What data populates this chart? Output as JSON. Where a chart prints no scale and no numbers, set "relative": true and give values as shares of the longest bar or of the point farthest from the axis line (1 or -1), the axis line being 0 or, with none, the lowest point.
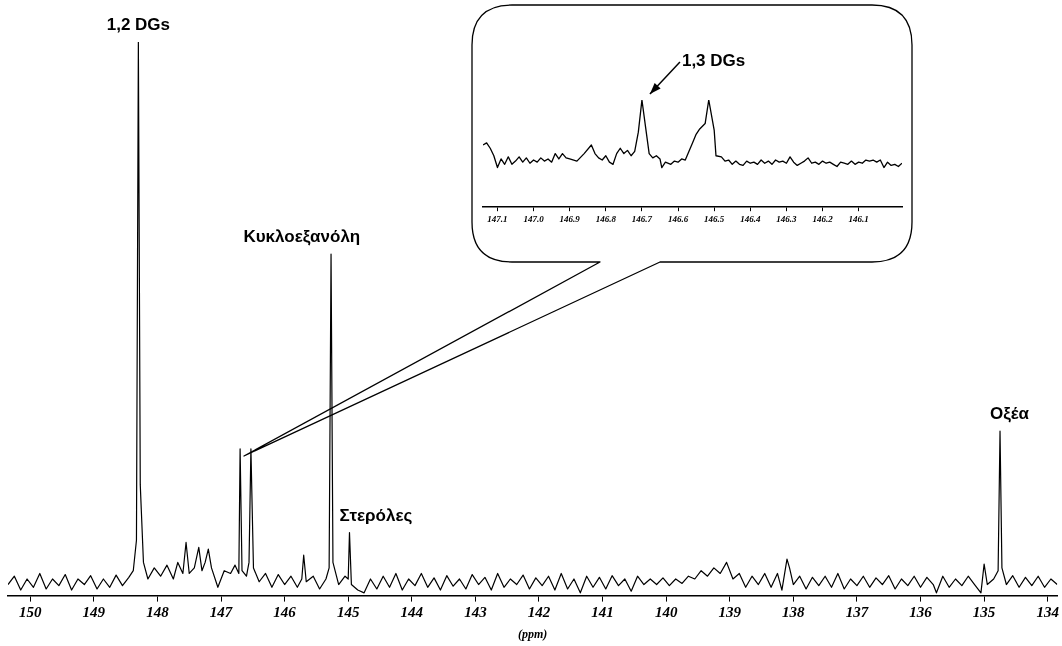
{
  "chart_data": [
    {
      "type": "line",
      "xlabel": "(ppm)",
      "relative": true,
      "xlim": [
        150.35,
        133.85
      ],
      "xticks": [
        150,
        149,
        148,
        147,
        146,
        145,
        144,
        143,
        142,
        141,
        140,
        139,
        138,
        137,
        136,
        135,
        134
      ],
      "marker": "none",
      "line_style": "solid",
      "annotations": [
        {
          "text": "1,2 DGs",
          "x": 148.3,
          "y": 1.0
        },
        {
          "text": "Κυκλοεξανόλη",
          "x": 145.27,
          "y": 0.617
        },
        {
          "text": "Στερόλες",
          "x": 144.98,
          "y": 0.114
        },
        {
          "text": "Οξέα",
          "x": 134.75,
          "y": 0.297
        }
      ],
      "series": [
        {
          "color": "#000000",
          "x": [
            150.35,
            150.25,
            150.15,
            150.05,
            149.95,
            149.85,
            149.75,
            149.65,
            149.55,
            149.45,
            149.35,
            149.25,
            149.15,
            149.05,
            148.95,
            148.85,
            148.75,
            148.65,
            148.55,
            148.45,
            148.38,
            148.33,
            148.3,
            148.27,
            148.22,
            148.15,
            148.05,
            147.95,
            147.85,
            147.75,
            147.68,
            147.6,
            147.55,
            147.5,
            147.42,
            147.35,
            147.3,
            147.25,
            147.2,
            147.15,
            147.05,
            146.95,
            146.85,
            146.78,
            146.72,
            146.7,
            146.67,
            146.6,
            146.56,
            146.53,
            146.49,
            146.4,
            146.3,
            146.2,
            146.1,
            146.0,
            145.9,
            145.8,
            145.73,
            145.7,
            145.66,
            145.55,
            145.45,
            145.35,
            145.3,
            145.27,
            145.24,
            145.15,
            145.05,
            145.0,
            144.98,
            144.95,
            144.85,
            144.75,
            144.65,
            144.55,
            144.45,
            144.35,
            144.25,
            144.15,
            144.05,
            143.95,
            143.85,
            143.75,
            143.65,
            143.55,
            143.45,
            143.35,
            143.25,
            143.15,
            143.05,
            142.95,
            142.85,
            142.75,
            142.65,
            142.55,
            142.45,
            142.35,
            142.25,
            142.15,
            142.05,
            141.95,
            141.85,
            141.75,
            141.65,
            141.55,
            141.45,
            141.35,
            141.25,
            141.15,
            141.05,
            140.95,
            140.85,
            140.75,
            140.65,
            140.55,
            140.45,
            140.35,
            140.25,
            140.15,
            140.05,
            139.95,
            139.85,
            139.75,
            139.65,
            139.55,
            139.45,
            139.35,
            139.25,
            139.15,
            139.05,
            138.95,
            138.85,
            138.75,
            138.65,
            138.55,
            138.45,
            138.35,
            138.25,
            138.18,
            138.1,
            138.06,
            138.0,
            137.9,
            137.8,
            137.7,
            137.6,
            137.5,
            137.4,
            137.3,
            137.2,
            137.1,
            137.0,
            136.9,
            136.8,
            136.7,
            136.6,
            136.5,
            136.4,
            136.3,
            136.2,
            136.1,
            136.0,
            135.9,
            135.8,
            135.75,
            135.65,
            135.55,
            135.45,
            135.35,
            135.25,
            135.15,
            135.05,
            135.0,
            134.95,
            134.85,
            134.78,
            134.75,
            134.72,
            134.65,
            134.55,
            134.45,
            134.35,
            134.25,
            134.15,
            134.05,
            133.95,
            133.85
          ],
          "values": [
            0.02,
            0.035,
            0.01,
            0.03,
            0.015,
            0.04,
            0.012,
            0.03,
            0.018,
            0.038,
            0.01,
            0.03,
            0.02,
            0.036,
            0.012,
            0.03,
            0.015,
            0.037,
            0.018,
            0.033,
            0.045,
            0.1,
            1.0,
            0.2,
            0.06,
            0.03,
            0.05,
            0.035,
            0.055,
            0.03,
            0.06,
            0.04,
            0.096,
            0.04,
            0.05,
            0.087,
            0.045,
            0.06,
            0.084,
            0.05,
            0.015,
            0.045,
            0.04,
            0.055,
            0.04,
            0.265,
            0.045,
            0.035,
            0.06,
            0.265,
            0.05,
            0.025,
            0.04,
            0.015,
            0.038,
            0.02,
            0.035,
            0.015,
            0.03,
            0.073,
            0.025,
            0.035,
            0.012,
            0.03,
            0.05,
            0.617,
            0.06,
            0.02,
            0.035,
            0.03,
            0.114,
            0.02,
            0.01,
            0.005,
            0.03,
            0.012,
            0.035,
            0.015,
            0.04,
            0.01,
            0.03,
            0.018,
            0.04,
            0.015,
            0.032,
            0.01,
            0.036,
            0.017,
            0.03,
            0.012,
            0.038,
            0.02,
            0.033,
            0.01,
            0.04,
            0.015,
            0.03,
            0.02,
            0.037,
            0.012,
            0.032,
            0.018,
            0.035,
            0.01,
            0.04,
            0.012,
            0.03,
            0.005,
            0.035,
            0.015,
            0.033,
            0.012,
            0.036,
            0.018,
            0.03,
            0.008,
            0.035,
            0.02,
            0.03,
            0.02,
            0.032,
            0.018,
            0.03,
            0.022,
            0.035,
            0.03,
            0.045,
            0.035,
            0.05,
            0.04,
            0.06,
            0.03,
            0.04,
            0.015,
            0.035,
            0.02,
            0.04,
            0.015,
            0.04,
            0.01,
            0.066,
            0.05,
            0.02,
            0.035,
            0.012,
            0.033,
            0.018,
            0.035,
            0.015,
            0.04,
            0.012,
            0.03,
            0.018,
            0.035,
            0.015,
            0.032,
            0.02,
            0.036,
            0.012,
            0.03,
            0.018,
            0.035,
            0.015,
            0.033,
            0.02,
            0.005,
            0.035,
            0.015,
            0.03,
            0.018,
            0.035,
            0.02,
            0.005,
            0.057,
            0.02,
            0.03,
            0.045,
            0.297,
            0.05,
            0.02,
            0.036,
            0.015,
            0.033,
            0.018,
            0.035,
            0.015,
            0.03,
            0.02
          ]
        }
      ]
    },
    {
      "type": "line",
      "relative": true,
      "xlim": [
        147.14,
        145.98
      ],
      "xticks": [
        147.1,
        {
          "value": 147,
          "label": "147.0"
        },
        146.9,
        146.8,
        146.7,
        146.6,
        146.5,
        146.4,
        146.3,
        146.2,
        146.1
      ],
      "marker": "none",
      "line_style": "solid",
      "annotations": [
        {
          "text": "1,3 DGs",
          "x": 146.7,
          "y": 1.0
        }
      ],
      "series": [
        {
          "color": "#000000",
          "x": [
            147.14,
            147.13,
            147.12,
            147.11,
            147.1,
            147.09,
            147.08,
            147.07,
            147.06,
            147.05,
            147.04,
            147.03,
            147.02,
            147.01,
            147.0,
            146.99,
            146.98,
            146.97,
            146.96,
            146.95,
            146.94,
            146.93,
            146.92,
            146.91,
            146.9,
            146.88,
            146.86,
            146.84,
            146.83,
            146.82,
            146.81,
            146.8,
            146.79,
            146.78,
            146.77,
            146.76,
            146.75,
            146.74,
            146.73,
            146.72,
            146.71,
            146.7,
            146.69,
            146.68,
            146.67,
            146.66,
            146.65,
            146.645,
            146.635,
            146.62,
            146.61,
            146.6,
            146.59,
            146.58,
            146.57,
            146.56,
            146.55,
            146.54,
            146.525,
            146.515,
            146.5,
            146.495,
            146.48,
            146.47,
            146.46,
            146.45,
            146.44,
            146.43,
            146.42,
            146.41,
            146.4,
            146.39,
            146.38,
            146.37,
            146.36,
            146.35,
            146.34,
            146.33,
            146.32,
            146.31,
            146.3,
            146.29,
            146.28,
            146.27,
            146.26,
            146.25,
            146.24,
            146.23,
            146.22,
            146.21,
            146.2,
            146.19,
            146.18,
            146.17,
            146.16,
            146.15,
            146.14,
            146.13,
            146.12,
            146.11,
            146.1,
            146.09,
            146.08,
            146.07,
            146.06,
            146.05,
            146.04,
            146.03,
            146.02,
            146.01,
            146.0,
            145.99,
            145.98
          ],
          "values": [
            0.58,
            0.6,
            0.55,
            0.48,
            0.37,
            0.45,
            0.4,
            0.47,
            0.4,
            0.43,
            0.47,
            0.42,
            0.46,
            0.41,
            0.44,
            0.42,
            0.46,
            0.43,
            0.45,
            0.42,
            0.5,
            0.45,
            0.5,
            0.46,
            0.45,
            0.43,
            0.5,
            0.58,
            0.5,
            0.46,
            0.44,
            0.48,
            0.42,
            0.4,
            0.5,
            0.55,
            0.5,
            0.53,
            0.48,
            0.52,
            0.7,
            1.0,
            0.75,
            0.5,
            0.46,
            0.48,
            0.45,
            0.37,
            0.42,
            0.4,
            0.43,
            0.42,
            0.45,
            0.44,
            0.52,
            0.6,
            0.68,
            0.73,
            0.78,
            1.0,
            0.72,
            0.48,
            0.47,
            0.43,
            0.44,
            0.4,
            0.43,
            0.4,
            0.39,
            0.43,
            0.41,
            0.42,
            0.4,
            0.44,
            0.41,
            0.43,
            0.4,
            0.44,
            0.42,
            0.43,
            0.41,
            0.47,
            0.42,
            0.39,
            0.41,
            0.43,
            0.46,
            0.41,
            0.42,
            0.4,
            0.43,
            0.41,
            0.42,
            0.4,
            0.38,
            0.42,
            0.41,
            0.4,
            0.43,
            0.4,
            0.42,
            0.41,
            0.44,
            0.43,
            0.44,
            0.42,
            0.44,
            0.37,
            0.42,
            0.39,
            0.4,
            0.38,
            0.41
          ]
        }
      ]
    }
  ]
}
